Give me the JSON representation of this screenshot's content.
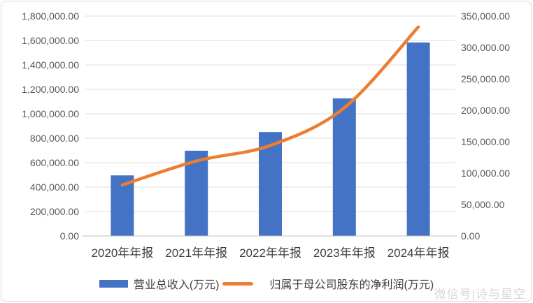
{
  "chart_data": {
    "type": "combo",
    "title": "",
    "categories": [
      "2020年年报",
      "2021年年报",
      "2022年年报",
      "2023年年报",
      "2024年年报"
    ],
    "series": [
      {
        "name": "营业总收入(万元)",
        "type": "bar",
        "axis": "left",
        "color": "#4472C4",
        "values": [
          495900,
          697800,
          850500,
          1126300,
          1583900
        ]
      },
      {
        "name": "归属于母公司股东的净利润(万元)",
        "type": "line",
        "axis": "right",
        "color": "#ED7D31",
        "smooth": true,
        "values": [
          81200,
          119300,
          144100,
          204000,
          332700
        ]
      }
    ],
    "left_axis": {
      "min": 0,
      "max": 1800000,
      "step": 200000,
      "labels": [
        "0.00",
        "200,000.00",
        "400,000.00",
        "600,000.00",
        "800,000.00",
        "1,000,000.00",
        "1,200,000.00",
        "1,400,000.00",
        "1,600,000.00",
        "1,800,000.00"
      ]
    },
    "right_axis": {
      "min": 0,
      "max": 350000,
      "step": 50000,
      "labels": [
        "0.00",
        "50,000.00",
        "100,000.00",
        "150,000.00",
        "200,000.00",
        "250,000.00",
        "300,000.00",
        "350,000.00"
      ]
    },
    "grid": "horizontal",
    "legend_position": "bottom",
    "gridline_color": "#dcdcdc",
    "axisline_color": "#bfbfbf"
  },
  "watermark": "微信号|诗与星空"
}
